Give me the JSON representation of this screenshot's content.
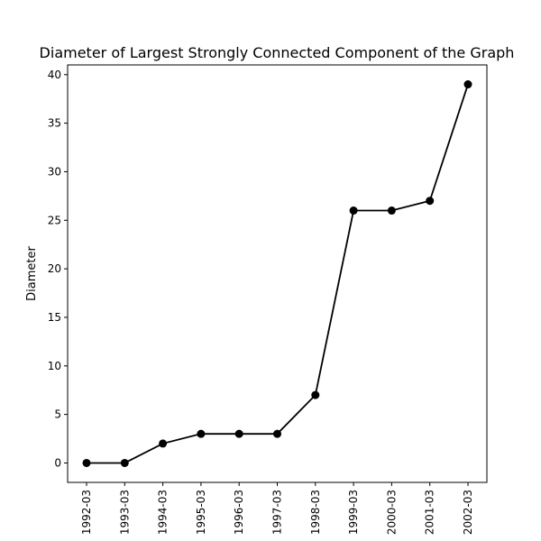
{
  "chart_data": {
    "type": "line",
    "title": "Diameter of Largest Strongly Connected Component of the Graph",
    "xlabel": "",
    "ylabel": "Diameter",
    "categories": [
      "1992-03",
      "1993-03",
      "1994-03",
      "1995-03",
      "1996-03",
      "1997-03",
      "1998-03",
      "1999-03",
      "2000-03",
      "2001-03",
      "2002-03"
    ],
    "series": [
      {
        "values": [
          0,
          0,
          2,
          3,
          3,
          3,
          7,
          26,
          26,
          27,
          39
        ]
      }
    ],
    "ylim": [
      -2,
      41
    ],
    "yticks": [
      0,
      5,
      10,
      15,
      20,
      25,
      30,
      35,
      40
    ],
    "grid": false,
    "line_color": "#000000",
    "marker": "circle"
  }
}
